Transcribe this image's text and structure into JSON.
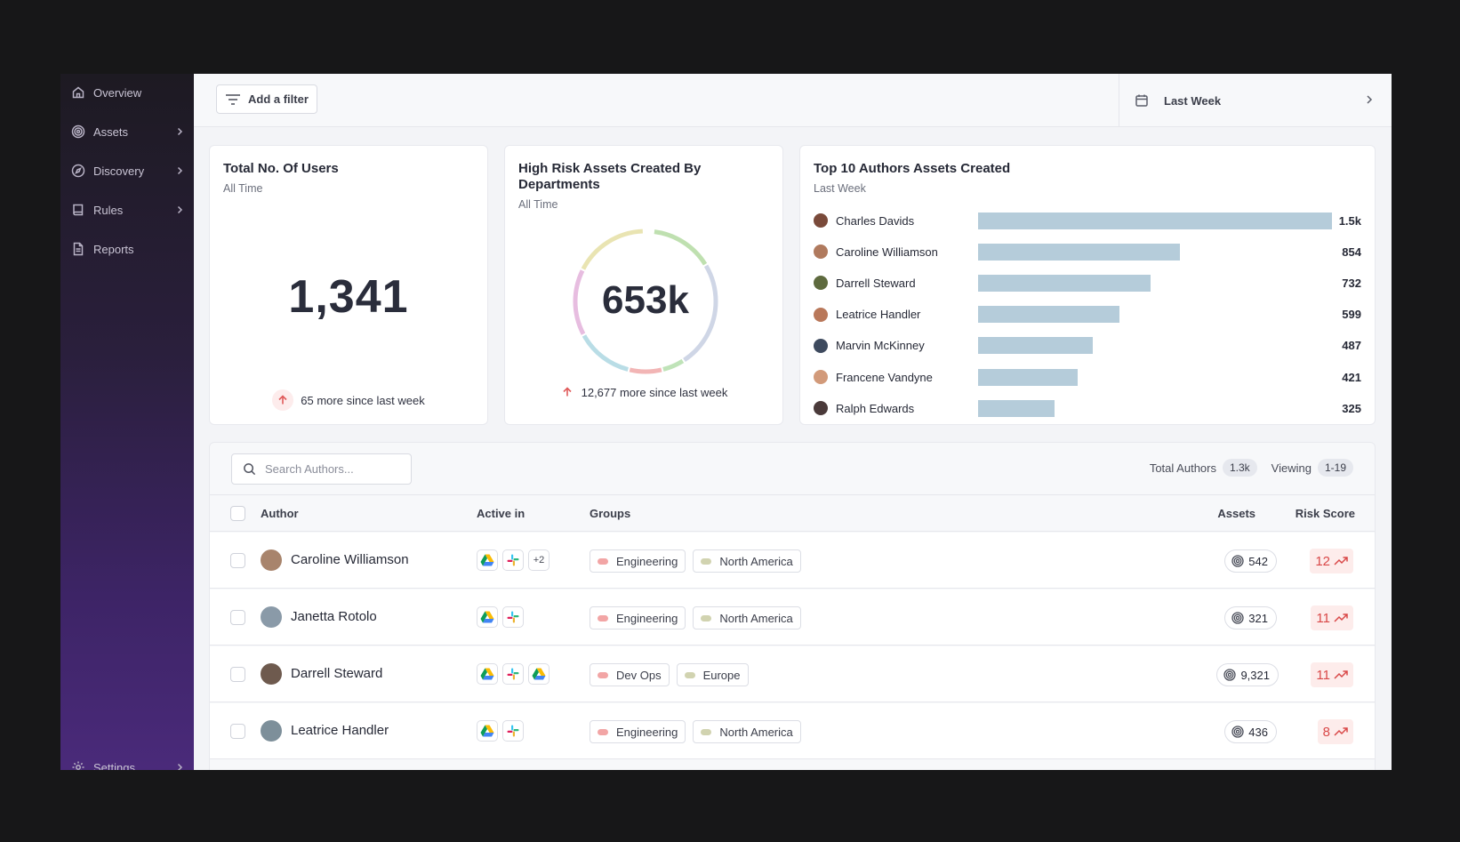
{
  "sidebar": {
    "items": [
      {
        "label": "Overview",
        "icon": "home-icon",
        "has_chevron": false
      },
      {
        "label": "Assets",
        "icon": "target-icon",
        "has_chevron": true
      },
      {
        "label": "Discovery",
        "icon": "compass-icon",
        "has_chevron": true
      },
      {
        "label": "Rules",
        "icon": "book-icon",
        "has_chevron": true
      },
      {
        "label": "Reports",
        "icon": "document-icon",
        "has_chevron": false
      }
    ],
    "settings_label": "Settings"
  },
  "topbar": {
    "filter_label": "Add a filter",
    "date_range": "Last Week"
  },
  "users_card": {
    "title": "Total No. Of Users",
    "subtitle": "All Time",
    "value": "1,341",
    "trend": "65 more since last week"
  },
  "risk_card": {
    "title": "High Risk Assets Created By Departments",
    "subtitle": "All Time",
    "value": "653k",
    "trend": "12,677 more since last week"
  },
  "authors_card": {
    "title": "Top 10 Authors Assets Created",
    "subtitle": "Last Week"
  },
  "chart_data": {
    "type": "bar",
    "orientation": "horizontal",
    "title": "Top 10 Authors Assets Created",
    "categories": [
      "Charles Davids",
      "Caroline Williamson",
      "Darrell Steward",
      "Leatrice Handler",
      "Marvin McKinney",
      "Francene Vandyne",
      "Ralph Edwards"
    ],
    "values": [
      1500,
      854,
      732,
      599,
      487,
      421,
      325
    ],
    "value_labels": [
      "1.5k",
      "854",
      "732",
      "599",
      "487",
      "421",
      "325"
    ],
    "bar_color": "#b5ccda"
  },
  "table": {
    "search_placeholder": "Search Authors...",
    "total_label": "Total Authors",
    "total_value": "1.3k",
    "viewing_label": "Viewing",
    "viewing_value": "1-19",
    "headers": {
      "author": "Author",
      "active_in": "Active in",
      "groups": "Groups",
      "assets": "Assets",
      "risk": "Risk Score"
    },
    "rows": [
      {
        "author": "Caroline Williamson",
        "apps": [
          "google-drive-icon",
          "slack-icon"
        ],
        "extra_apps": "+2",
        "groups": [
          "Engineering",
          "North America"
        ],
        "assets": "542",
        "risk": "12"
      },
      {
        "author": "Janetta Rotolo",
        "apps": [
          "google-drive-icon",
          "slack-icon"
        ],
        "extra_apps": "",
        "groups": [
          "Engineering",
          "North America"
        ],
        "assets": "321",
        "risk": "11"
      },
      {
        "author": "Darrell Steward",
        "apps": [
          "google-drive-icon",
          "slack-icon",
          "google-drive-icon"
        ],
        "extra_apps": "",
        "groups": [
          "Dev Ops",
          "Europe"
        ],
        "assets": "9,321",
        "risk": "11"
      },
      {
        "author": "Leatrice Handler",
        "apps": [
          "google-drive-icon",
          "slack-icon"
        ],
        "extra_apps": "",
        "groups": [
          "Engineering",
          "North America"
        ],
        "assets": "436",
        "risk": "8"
      }
    ]
  },
  "colors": {
    "accent_purple": "#4a2a7a",
    "risk_red": "#d94848",
    "group_dot_department": "#f2a5a5",
    "group_dot_region": "#d1d3b0"
  }
}
